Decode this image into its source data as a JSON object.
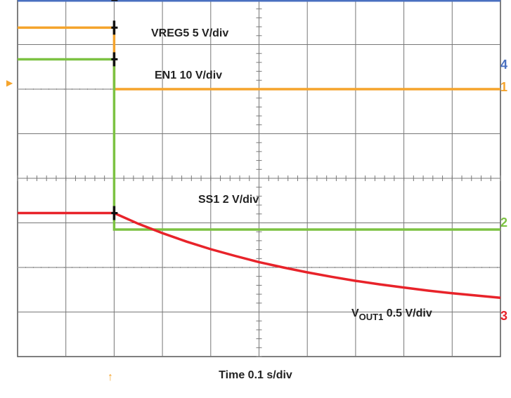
{
  "chart_data": {
    "type": "line",
    "xlabel": "Time 0.1 s/div",
    "x_unit": "s",
    "x_divisions": 10,
    "y_divisions": 8,
    "trigger_time_s": 0.2,
    "series": [
      {
        "name": "VREG5",
        "scale_label": "VREG5 5 V/div",
        "channel_marker": "4",
        "color": "#4a70c0",
        "x": [
          0.0,
          1.0
        ],
        "y": [
          7.98,
          7.98
        ]
      },
      {
        "name": "EN1",
        "scale_label": "EN1 10 V/div",
        "channel_marker": "1",
        "color": "#f5a42c",
        "x": [
          0.0,
          0.2,
          0.2,
          1.0
        ],
        "y": [
          7.38,
          7.38,
          6.0,
          6.0
        ]
      },
      {
        "name": "SS1",
        "scale_label": "SS1 2 V/div",
        "channel_marker": "2",
        "color": "#7cc242",
        "x": [
          0.0,
          0.2,
          0.2,
          1.0
        ],
        "y": [
          6.67,
          6.67,
          2.85,
          2.85
        ]
      },
      {
        "name": "VOUT1",
        "scale_label_main": "V",
        "scale_label_sub": "OUT1",
        "scale_label_rest": " 0.5 V/div",
        "channel_marker": "3",
        "color": "#e8232a",
        "x": [
          0.0,
          0.2,
          0.25,
          0.3,
          0.35,
          0.4,
          0.45,
          0.5,
          0.55,
          0.6,
          0.65,
          0.7,
          0.75,
          0.8,
          0.85,
          0.9,
          0.95,
          1.0
        ],
        "y": [
          3.22,
          3.22,
          2.98,
          2.77,
          2.58,
          2.41,
          2.26,
          2.12,
          2.0,
          1.89,
          1.79,
          1.7,
          1.62,
          1.55,
          1.48,
          1.42,
          1.37,
          1.32
        ]
      }
    ]
  },
  "indicators": {
    "ground_ref_symbol": "▶",
    "trigger_symbol": "↑"
  }
}
